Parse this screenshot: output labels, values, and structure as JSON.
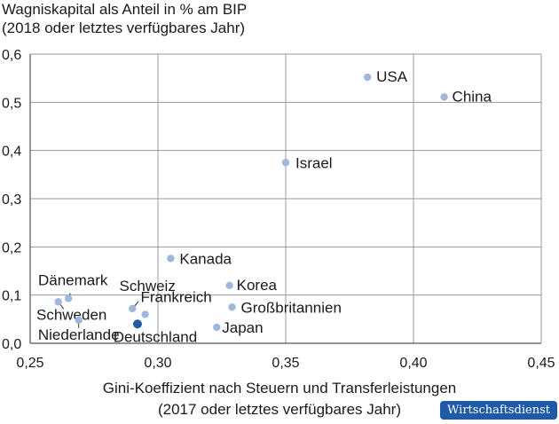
{
  "chart_data": {
    "type": "scatter",
    "title": "Wagniskapital als Anteil in % am BIP",
    "subtitle": "(2018 oder letztes verfügbares Jahr)",
    "xlabel": "Gini-Koeffizient nach Steuern und Transferleistungen",
    "xlabel_sub": "(2017 oder letztes verfügbares Jahr)",
    "xlim": [
      0.25,
      0.45
    ],
    "ylim": [
      0.0,
      0.6
    ],
    "xticks": [
      0.25,
      0.3,
      0.35,
      0.4,
      0.45
    ],
    "yticks": [
      0.0,
      0.1,
      0.2,
      0.3,
      0.4,
      0.5,
      0.6
    ],
    "xtick_labels": [
      "0,25",
      "0,30",
      "0,35",
      "0,40",
      "0,45"
    ],
    "ytick_labels": [
      "0,0",
      "0,1",
      "0,2",
      "0,3",
      "0,4",
      "0,5",
      "0,6"
    ],
    "grid": true,
    "point_color": "#9db8de",
    "highlight_color": "#1e5aa8",
    "points": [
      {
        "label": "USA",
        "x": 0.382,
        "y": 0.552
      },
      {
        "label": "China",
        "x": 0.412,
        "y": 0.511
      },
      {
        "label": "Israel",
        "x": 0.35,
        "y": 0.375
      },
      {
        "label": "Kanada",
        "x": 0.305,
        "y": 0.176
      },
      {
        "label": "Korea",
        "x": 0.328,
        "y": 0.12
      },
      {
        "label": "Großbritannien",
        "x": 0.329,
        "y": 0.075
      },
      {
        "label": "Japan",
        "x": 0.323,
        "y": 0.033
      },
      {
        "label": "Dänemark",
        "x": 0.265,
        "y": 0.093
      },
      {
        "label": "Schweden",
        "x": 0.261,
        "y": 0.086
      },
      {
        "label": "Niederlande",
        "x": 0.269,
        "y": 0.048
      },
      {
        "label": "Schweiz",
        "x": 0.29,
        "y": 0.072
      },
      {
        "label": "Frankreich",
        "x": 0.295,
        "y": 0.06
      },
      {
        "label": "Deutschland",
        "x": 0.292,
        "y": 0.04,
        "highlight": true
      }
    ]
  },
  "brand": {
    "logo_text": "Wirtschaftsdienst"
  }
}
